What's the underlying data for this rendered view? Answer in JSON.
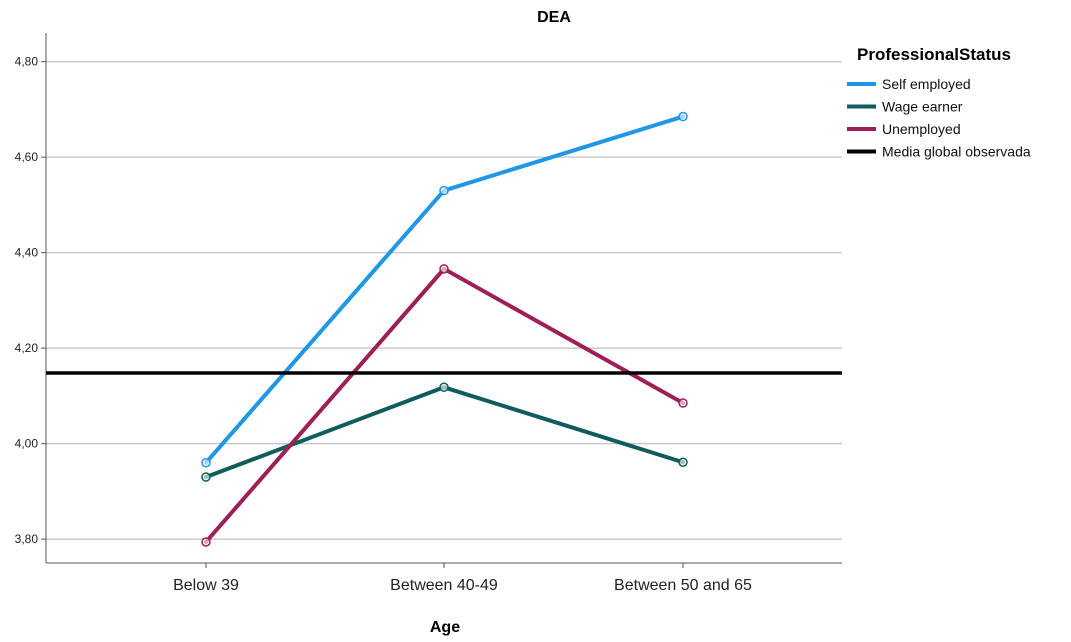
{
  "chart_data": {
    "type": "line",
    "title": "DEA",
    "xlabel": "Age",
    "ylabel": "",
    "categories": [
      "Below 39",
      "Between 40-49",
      "Between 50 and 65"
    ],
    "ylim": [
      3.75,
      4.86
    ],
    "yticks": [
      3.8,
      4.0,
      4.2,
      4.4,
      4.6,
      4.8
    ],
    "ytick_labels": [
      "3,80",
      "4,00",
      "4,20",
      "4,40",
      "4,60",
      "4,80"
    ],
    "grid": "horizontal",
    "legend_title": "ProfessionalStatus",
    "legend_position": "right",
    "series": [
      {
        "name": "Self employed",
        "color": "#1f97e6",
        "values": [
          3.96,
          4.53,
          4.685
        ]
      },
      {
        "name": "Wage earner",
        "color": "#0e5d5c",
        "values": [
          3.93,
          4.118,
          3.961
        ]
      },
      {
        "name": "Unemployed",
        "color": "#9e1f57",
        "values": [
          3.794,
          4.366,
          4.085
        ]
      }
    ],
    "reference_line": {
      "name": "Media global observada",
      "color": "#000000",
      "value": 4.148
    }
  }
}
